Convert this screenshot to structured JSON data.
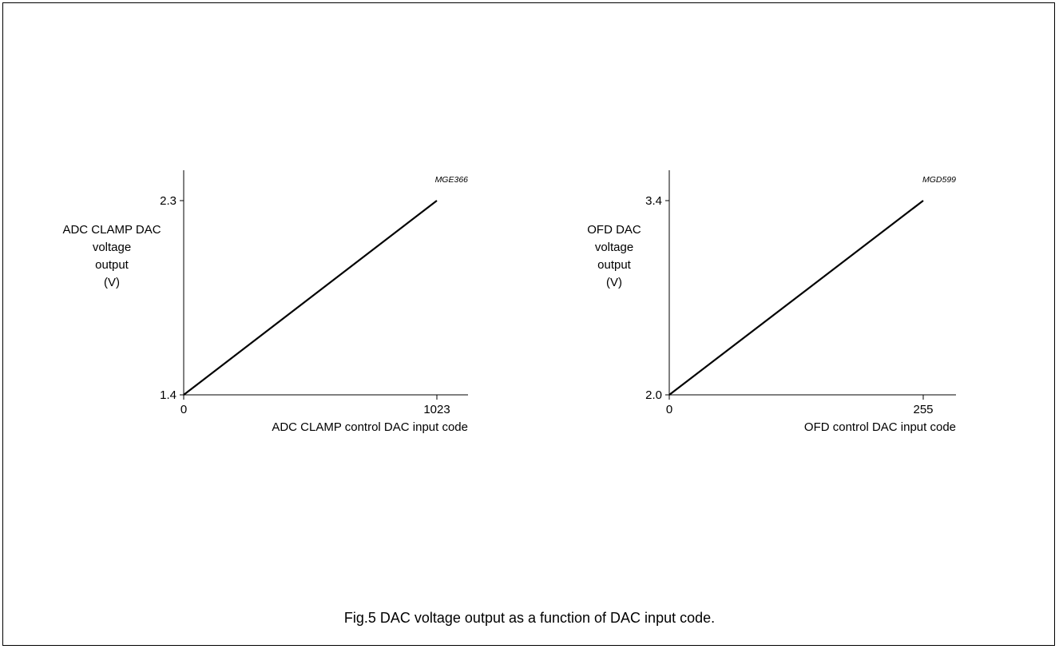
{
  "caption": "Fig.5  DAC voltage output as a function of DAC input code.",
  "chart_data": [
    {
      "type": "line",
      "code": "MGE366",
      "ylabel_lines": [
        "ADC CLAMP DAC",
        "voltage",
        "output",
        "(V)"
      ],
      "xlabel": "ADC CLAMP control DAC input code",
      "xlim": [
        0,
        1023
      ],
      "ylim": [
        1.4,
        2.3
      ],
      "x_ticks": [
        "0",
        "1023"
      ],
      "y_ticks": [
        "1.4",
        "2.3"
      ],
      "series": [
        {
          "x": [
            0,
            1023
          ],
          "y": [
            1.4,
            2.3
          ]
        }
      ],
      "grid": false
    },
    {
      "type": "line",
      "code": "MGD599",
      "ylabel_lines": [
        "OFD DAC",
        "voltage",
        "output",
        "(V)"
      ],
      "xlabel": "OFD control DAC input code",
      "xlim": [
        0,
        255
      ],
      "ylim": [
        2.0,
        3.4
      ],
      "x_ticks": [
        "0",
        "255"
      ],
      "y_ticks": [
        "2.0",
        "3.4"
      ],
      "series": [
        {
          "x": [
            0,
            255
          ],
          "y": [
            2.0,
            3.4
          ]
        }
      ],
      "grid": false
    }
  ]
}
